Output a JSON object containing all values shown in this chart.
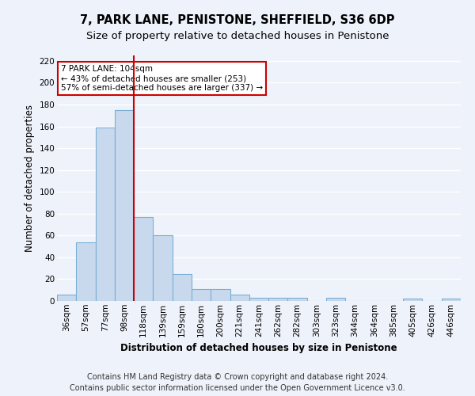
{
  "title": "7, PARK LANE, PENISTONE, SHEFFIELD, S36 6DP",
  "subtitle": "Size of property relative to detached houses in Penistone",
  "xlabel": "Distribution of detached houses by size in Penistone",
  "ylabel": "Number of detached properties",
  "bar_categories": [
    "36sqm",
    "57sqm",
    "77sqm",
    "98sqm",
    "118sqm",
    "139sqm",
    "159sqm",
    "180sqm",
    "200sqm",
    "221sqm",
    "241sqm",
    "262sqm",
    "282sqm",
    "303sqm",
    "323sqm",
    "344sqm",
    "364sqm",
    "385sqm",
    "405sqm",
    "426sqm",
    "446sqm"
  ],
  "bar_values": [
    6,
    54,
    159,
    175,
    77,
    60,
    25,
    11,
    11,
    6,
    3,
    3,
    3,
    0,
    3,
    0,
    0,
    0,
    2,
    0,
    2
  ],
  "bar_color": "#c8d9ee",
  "bar_edge_color": "#7aafd4",
  "vline_x": 3.5,
  "vline_color": "#cc0000",
  "ylim": [
    0,
    225
  ],
  "yticks": [
    0,
    20,
    40,
    60,
    80,
    100,
    120,
    140,
    160,
    180,
    200,
    220
  ],
  "annotation_text": "7 PARK LANE: 104sqm\n← 43% of detached houses are smaller (253)\n57% of semi-detached houses are larger (337) →",
  "annotation_box_color": "#ffffff",
  "annotation_box_edge": "#cc0000",
  "footer_line1": "Contains HM Land Registry data © Crown copyright and database right 2024.",
  "footer_line2": "Contains public sector information licensed under the Open Government Licence v3.0.",
  "background_color": "#eef2fa",
  "grid_color": "#ffffff",
  "title_fontsize": 10.5,
  "subtitle_fontsize": 9.5,
  "label_fontsize": 8.5,
  "tick_fontsize": 7.5,
  "footer_fontsize": 7,
  "annot_fontsize": 7.5
}
